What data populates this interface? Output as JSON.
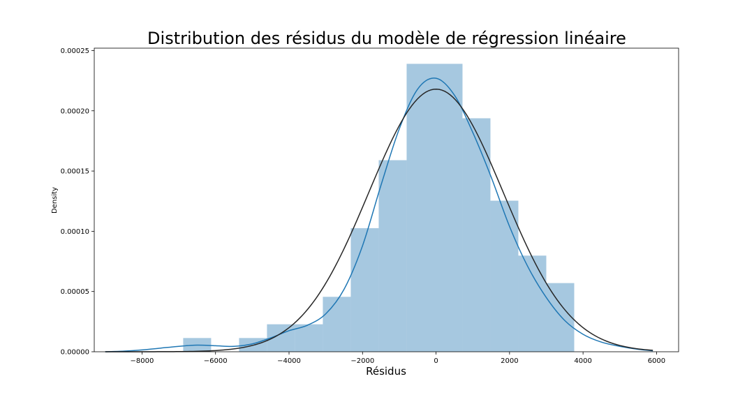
{
  "chart_data": {
    "type": "bar",
    "title": "Distribution des résidus du modèle de régression linéaire",
    "xlabel": "Résidus",
    "ylabel": "Density",
    "xlim": [
      -9300,
      6600
    ],
    "ylim": [
      0,
      0.000252
    ],
    "x_ticks": [
      -8000,
      -6000,
      -4000,
      -2000,
      0,
      2000,
      4000,
      6000
    ],
    "x_tick_labels": [
      "−8000",
      "−6000",
      "−4000",
      "−2000",
      "0",
      "2000",
      "4000",
      "6000"
    ],
    "y_ticks": [
      0,
      5e-05,
      0.0001,
      0.00015,
      0.0002,
      0.00025
    ],
    "y_tick_labels": [
      "0.00000",
      "0.00005",
      "0.00010",
      "0.00015",
      "0.00020",
      "0.00025"
    ],
    "grid": false,
    "histogram": {
      "color": "#a6c8e0",
      "bins": [
        {
          "x0": -6880,
          "x1": -6120,
          "density": 1.14e-05
        },
        {
          "x0": -6120,
          "x1": -5360,
          "density": 0.0
        },
        {
          "x0": -5360,
          "x1": -4600,
          "density": 1.14e-05
        },
        {
          "x0": -4600,
          "x1": -3840,
          "density": 2.28e-05
        },
        {
          "x0": -3840,
          "x1": -3080,
          "density": 2.28e-05
        },
        {
          "x0": -3080,
          "x1": -2320,
          "density": 4.56e-05
        },
        {
          "x0": -2320,
          "x1": -1560,
          "density": 0.0001026
        },
        {
          "x0": -1560,
          "x1": -800,
          "density": 0.000159
        },
        {
          "x0": -800,
          "x1": 720,
          "density": 0.000239
        },
        {
          "x0": 720,
          "x1": 1480,
          "density": 0.0001938
        },
        {
          "x0": 1480,
          "x1": 2240,
          "density": 0.0001254
        },
        {
          "x0": 2240,
          "x1": 3000,
          "density": 7.98e-05
        },
        {
          "x0": 3000,
          "x1": 3760,
          "density": 5.7e-05
        }
      ]
    },
    "series": [
      {
        "style": "kde",
        "color": "#1f77b4",
        "x": [
          -9000,
          -8500,
          -8000,
          -7500,
          -7000,
          -6500,
          -6000,
          -5500,
          -5000,
          -4500,
          -4000,
          -3500,
          -3000,
          -2500,
          -2000,
          -1500,
          -1000,
          -500,
          0,
          500,
          1000,
          1500,
          2000,
          2500,
          3000,
          3500,
          4000,
          4500,
          5000,
          5500,
          5900
        ],
        "y": [
          0.0,
          5e-07,
          1.5e-06,
          3e-06,
          4.5e-06,
          5.5e-06,
          5e-06,
          4.5e-06,
          6.5e-06,
          1.15e-05,
          1.75e-05,
          2.2e-05,
          3.15e-05,
          5.2e-05,
          8.8e-05,
          0.000138,
          0.000185,
          0.000218,
          0.000227,
          0.000213,
          0.000182,
          0.000145,
          0.000104,
          7.05e-05,
          4.5e-05,
          2.6e-05,
          1.45e-05,
          8e-06,
          4.5e-06,
          2e-06,
          8e-07
        ]
      },
      {
        "style": "normal-fit",
        "color": "#262626",
        "mean": 0,
        "std": 1830,
        "x_range": [
          -9000,
          5900
        ]
      }
    ]
  }
}
